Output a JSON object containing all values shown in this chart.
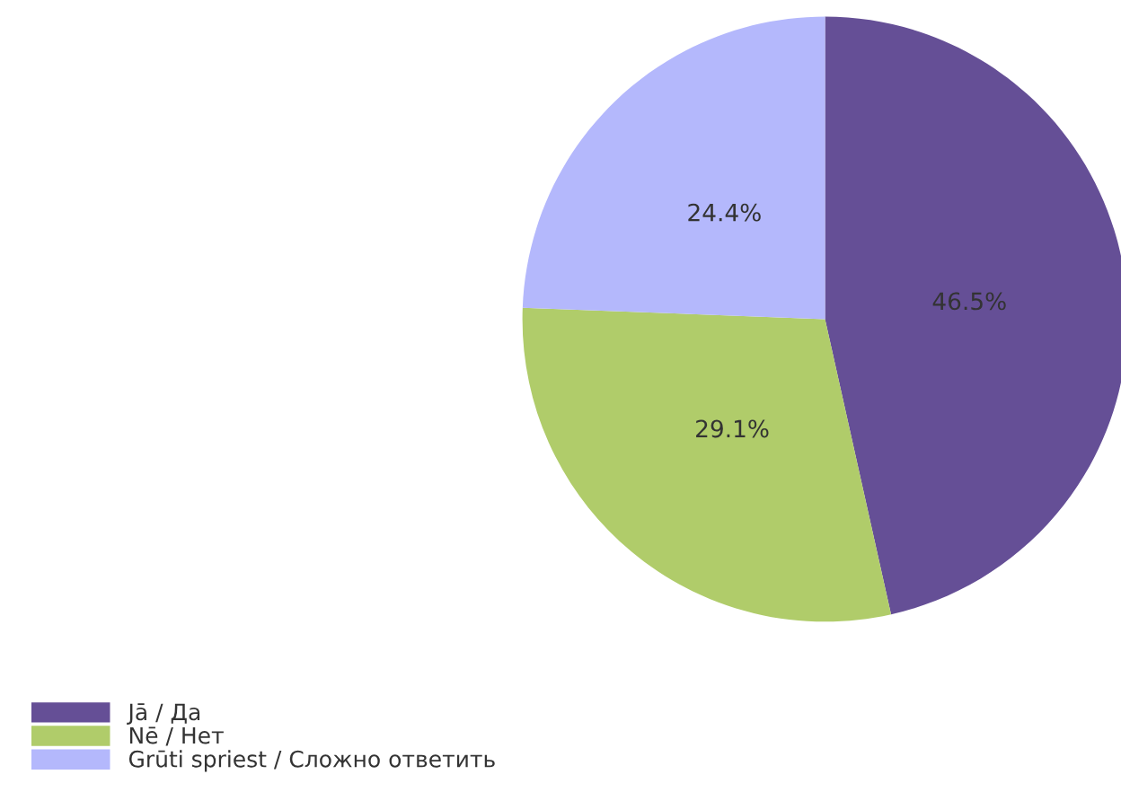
{
  "chart_data": {
    "type": "pie",
    "categories": [
      "Jā / Да",
      "Nē / Нет",
      "Grūti spriest / Сложно ответить"
    ],
    "values": [
      46.5,
      29.1,
      24.4
    ],
    "colors": [
      "#654f96",
      "#b0cc6a",
      "#b4b8fc"
    ],
    "value_labels": [
      "46.5%",
      "29.1%",
      "24.4%"
    ],
    "legend": "bottom left"
  }
}
